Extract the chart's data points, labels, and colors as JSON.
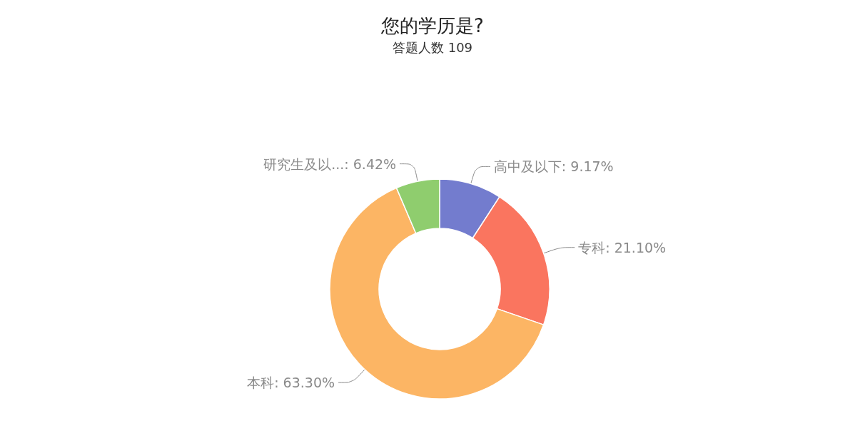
{
  "chart_data": {
    "type": "donut",
    "title": "您的学历是?",
    "subtitle": "答题人数 109",
    "categories": [
      "高中及以下",
      "专科",
      "本科",
      "研究生及以..."
    ],
    "values": [
      9.17,
      21.1,
      63.3,
      6.42
    ],
    "colors": [
      "#737cce",
      "#fa755f",
      "#fcb564",
      "#8fcd6e"
    ],
    "value_labels": [
      "9.17%",
      "21.10%",
      "63.30%",
      "6.42%"
    ],
    "legend": false
  }
}
